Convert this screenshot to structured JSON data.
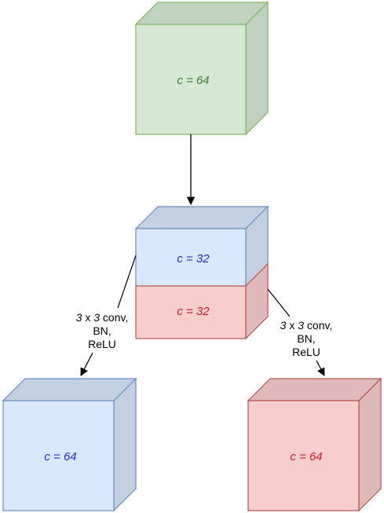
{
  "colors": {
    "green_fill": "#d5e8d4",
    "green_stroke": "#82b366",
    "green_text": "#3d7a3a",
    "blue_fill": "#dae8fc",
    "blue_stroke": "#6c8ebf",
    "blue_text": "#2b2bd1",
    "red_fill": "#f8cecc",
    "red_stroke": "#b85450",
    "red_text": "#cc1b2b"
  },
  "blocks": {
    "input": {
      "label": "c = 64"
    },
    "split_top": {
      "label": "c = 32"
    },
    "split_bottom": {
      "label": "c = 32"
    },
    "output_left": {
      "label": "c = 64"
    },
    "output_right": {
      "label": "c = 64"
    }
  },
  "operations": {
    "left": {
      "line1_k1": "3",
      "line1_x": " x ",
      "line1_k2": "3",
      "line1_rest": " conv,",
      "line2": "BN,",
      "line3": "ReLU"
    },
    "right": {
      "line1_k1": "3",
      "line1_x": " x ",
      "line1_k2": "3",
      "line1_rest": " conv,",
      "line2": "BN,",
      "line3": "ReLU"
    }
  }
}
